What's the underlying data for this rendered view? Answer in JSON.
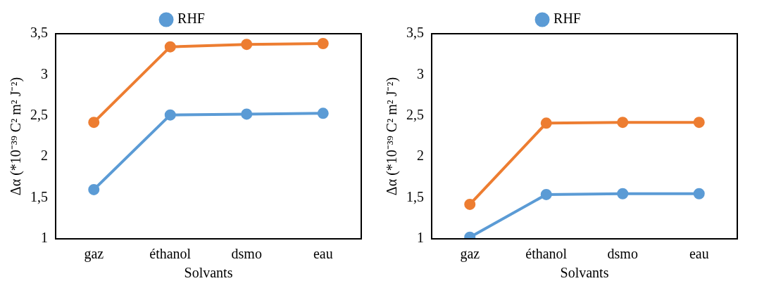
{
  "chart_data": [
    {
      "type": "line",
      "xlabel": "Solvants",
      "ylabel": "Δα (*10⁻³⁹ C² m² J⁻²)",
      "categories": [
        "gaz",
        "éthanol",
        "dsmo",
        "eau"
      ],
      "series": [
        {
          "name": "RHF",
          "color": "#5b9bd5",
          "values": [
            1.6,
            2.51,
            2.52,
            2.53
          ]
        },
        {
          "color": "#ed7d31",
          "values": [
            2.42,
            3.34,
            3.37,
            3.38
          ]
        }
      ],
      "ylim": [
        1,
        3.5
      ],
      "yticks": [
        1,
        {
          "value": 1.5,
          "label": "1,5"
        },
        2,
        {
          "value": 2.5,
          "label": "2,5"
        },
        3,
        {
          "value": 3.5,
          "label": "3,5"
        }
      ],
      "grid": false,
      "legend": "top",
      "marker": "circle",
      "line_style": "solid"
    },
    {
      "type": "line",
      "xlabel": "Solvants",
      "ylabel": "Δα (*10⁻³⁹ C² m² J⁻²)",
      "categories": [
        "gaz",
        "éthanol",
        "dsmo",
        "eau"
      ],
      "series": [
        {
          "name": "RHF",
          "color": "#5b9bd5",
          "values": [
            1.02,
            1.54,
            1.55,
            1.55
          ]
        },
        {
          "color": "#ed7d31",
          "values": [
            1.42,
            2.41,
            2.42,
            2.42
          ]
        }
      ],
      "ylim": [
        1,
        3.5
      ],
      "yticks": [
        1,
        {
          "value": 1.5,
          "label": "1,5"
        },
        2,
        {
          "value": 2.5,
          "label": "2,5"
        },
        3,
        {
          "value": 3.5,
          "label": "3,5"
        }
      ],
      "grid": false,
      "legend": "top",
      "marker": "circle",
      "line_style": "solid"
    }
  ]
}
